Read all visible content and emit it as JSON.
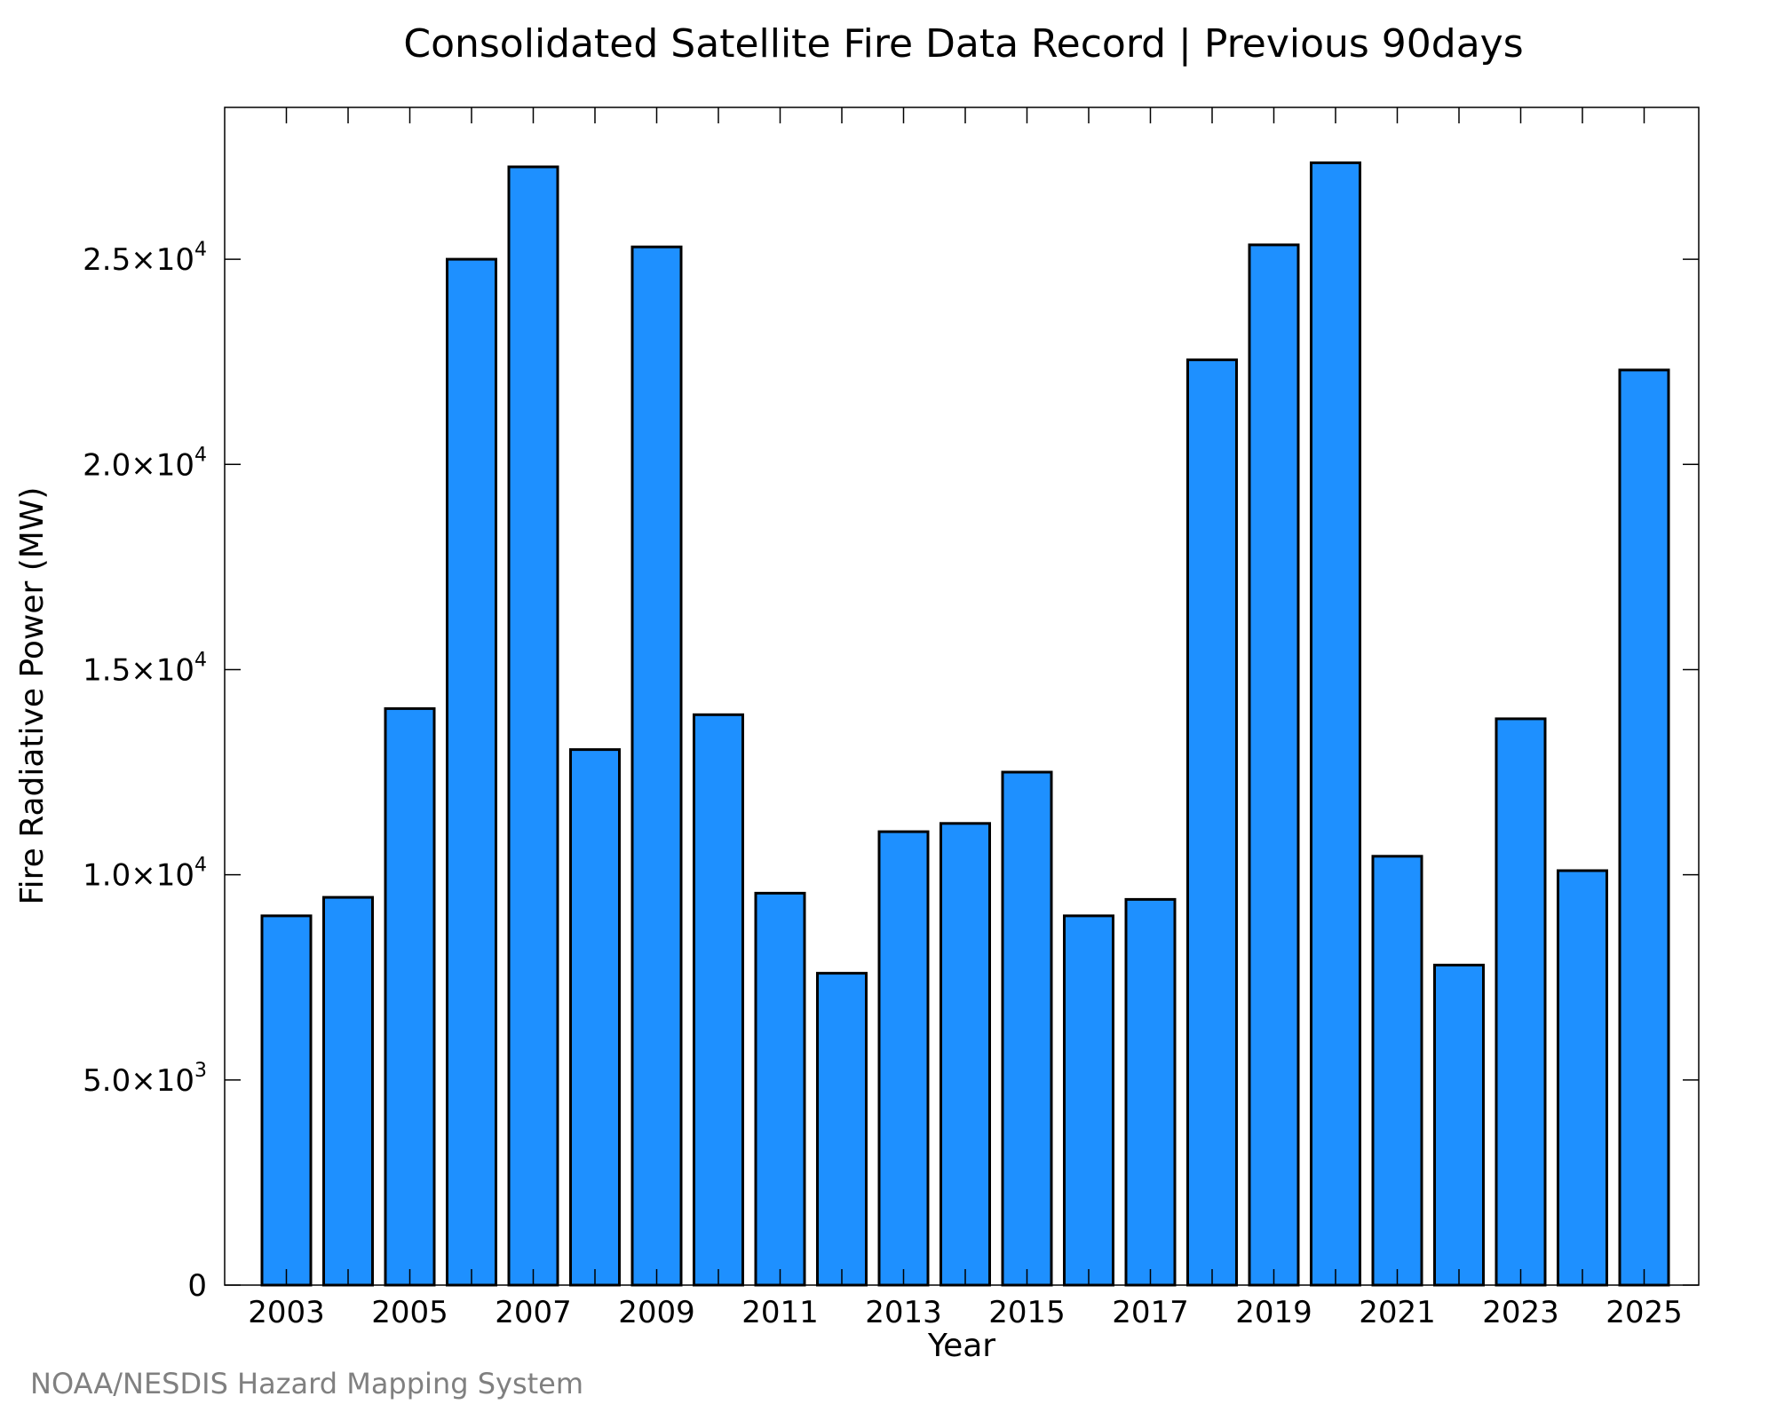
{
  "chart_data": {
    "type": "bar",
    "title": "Consolidated Satellite Fire Data Record | Previous 90days",
    "xlabel": "Year",
    "ylabel": "Fire Radiative Power (MW)",
    "categories": [
      "2003",
      "2004",
      "2005",
      "2006",
      "2007",
      "2008",
      "2009",
      "2010",
      "2011",
      "2012",
      "2013",
      "2014",
      "2015",
      "2016",
      "2017",
      "2018",
      "2019",
      "2020",
      "2021",
      "2022",
      "2023",
      "2024",
      "2025"
    ],
    "values": [
      9000,
      9450,
      14050,
      25000,
      27250,
      13050,
      25300,
      13900,
      9550,
      7600,
      11050,
      11250,
      12500,
      9000,
      9400,
      22550,
      25350,
      27350,
      10450,
      7800,
      13800,
      10100,
      22300
    ],
    "ylim": [
      0,
      28700
    ],
    "x_tick_labels": [
      "2003",
      "2005",
      "2007",
      "2009",
      "2011",
      "2013",
      "2015",
      "2017",
      "2019",
      "2021",
      "2023",
      "2025"
    ],
    "y_ticks": [
      {
        "value": 0,
        "mantissa": "0",
        "exponent": ""
      },
      {
        "value": 5000,
        "mantissa": "5.0×10",
        "exponent": "3"
      },
      {
        "value": 10000,
        "mantissa": "1.0×10",
        "exponent": "4"
      },
      {
        "value": 15000,
        "mantissa": "1.5×10",
        "exponent": "4"
      },
      {
        "value": 20000,
        "mantissa": "2.0×10",
        "exponent": "4"
      },
      {
        "value": 25000,
        "mantissa": "2.5×10",
        "exponent": "4"
      }
    ],
    "bar_color": "#1E90FF",
    "grid": false,
    "legend": "none"
  },
  "credit": "NOAA/NESDIS Hazard Mapping System"
}
